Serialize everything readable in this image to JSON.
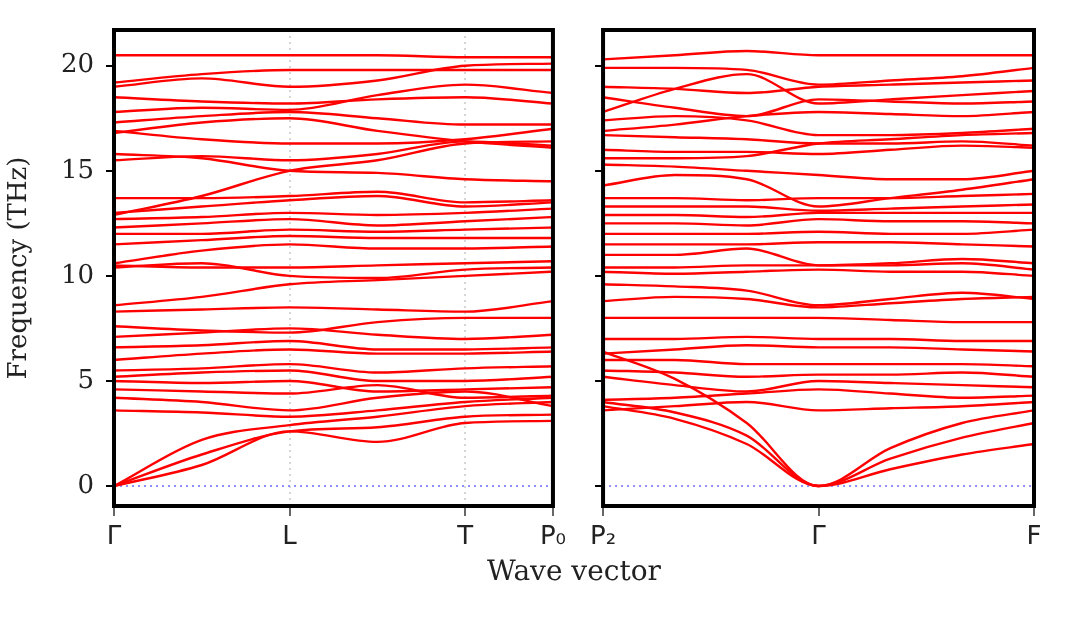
{
  "chart_data": [
    {
      "type": "line",
      "xlabel": "Wave vector",
      "ylabel": "Frequency (THz)",
      "categories": [
        "Γ",
        null,
        "L",
        null,
        "T",
        "P₀"
      ],
      "ylim": [
        -0.95,
        21.7
      ],
      "yticks": [
        0,
        5,
        10,
        15,
        20
      ],
      "grid": "x",
      "marker": "none",
      "ref_lines": [
        {
          "axis": "y",
          "value": 0,
          "color": "#6a6aff",
          "line_style": "dotted"
        }
      ],
      "series": [
        {
          "color": "#ff0000",
          "values": [
            0,
            1.0,
            2.6,
            2.1,
            3.0,
            3.1
          ]
        },
        {
          "color": "#ff0000",
          "values": [
            0,
            1.5,
            2.6,
            2.8,
            3.3,
            3.4
          ]
        },
        {
          "color": "#ff0000",
          "values": [
            0,
            2.2,
            2.9,
            3.3,
            3.8,
            4.0
          ]
        },
        {
          "color": "#ff0000",
          "values": [
            3.6,
            3.5,
            3.3,
            3.6,
            4.0,
            4.2
          ]
        },
        {
          "color": "#ff0000",
          "values": [
            4.2,
            4.0,
            3.6,
            4.2,
            4.5,
            3.8
          ]
        },
        {
          "color": "#ff0000",
          "values": [
            4.6,
            4.5,
            4.4,
            4.8,
            4.2,
            4.3
          ]
        },
        {
          "color": "#ff0000",
          "values": [
            5.0,
            4.9,
            5.0,
            4.5,
            4.6,
            4.7
          ]
        },
        {
          "color": "#ff0000",
          "values": [
            5.2,
            5.4,
            5.5,
            5.0,
            5.0,
            5.2
          ]
        },
        {
          "color": "#ff0000",
          "values": [
            5.5,
            5.6,
            5.8,
            5.4,
            5.6,
            5.7
          ]
        },
        {
          "color": "#ff0000",
          "values": [
            6.0,
            6.3,
            6.5,
            6.3,
            6.3,
            6.4
          ]
        },
        {
          "color": "#ff0000",
          "values": [
            6.6,
            6.7,
            6.9,
            6.5,
            6.5,
            6.6
          ]
        },
        {
          "color": "#ff0000",
          "values": [
            7.1,
            7.3,
            7.5,
            7.2,
            7.0,
            7.2
          ]
        },
        {
          "color": "#ff0000",
          "values": [
            7.6,
            7.4,
            7.3,
            7.8,
            8.0,
            8.0
          ]
        },
        {
          "color": "#ff0000",
          "values": [
            8.3,
            8.4,
            8.5,
            8.4,
            8.3,
            8.8
          ]
        },
        {
          "color": "#ff0000",
          "values": [
            8.6,
            9.0,
            9.6,
            9.8,
            10.0,
            10.2
          ]
        },
        {
          "color": "#ff0000",
          "values": [
            10.4,
            10.6,
            10.0,
            9.9,
            10.3,
            10.4
          ]
        },
        {
          "color": "#ff0000",
          "values": [
            10.5,
            10.4,
            10.4,
            10.5,
            10.6,
            10.7
          ]
        },
        {
          "color": "#ff0000",
          "values": [
            10.6,
            11.2,
            11.5,
            11.3,
            11.3,
            11.4
          ]
        },
        {
          "color": "#ff0000",
          "values": [
            11.5,
            11.7,
            11.9,
            11.8,
            11.8,
            11.8
          ]
        },
        {
          "color": "#ff0000",
          "values": [
            12.0,
            12.0,
            12.2,
            12.1,
            12.2,
            12.3
          ]
        },
        {
          "color": "#ff0000",
          "values": [
            12.3,
            12.5,
            12.7,
            12.4,
            12.6,
            12.8
          ]
        },
        {
          "color": "#ff0000",
          "values": [
            12.7,
            12.8,
            13.0,
            12.9,
            13.0,
            13.2
          ]
        },
        {
          "color": "#ff0000",
          "values": [
            13.0,
            13.3,
            13.6,
            13.8,
            13.3,
            13.5
          ]
        },
        {
          "color": "#ff0000",
          "values": [
            13.7,
            13.7,
            13.8,
            14.0,
            13.5,
            13.6
          ]
        },
        {
          "color": "#ff0000",
          "values": [
            12.9,
            13.8,
            15.0,
            15.5,
            16.3,
            16.4
          ]
        },
        {
          "color": "#ff0000",
          "values": [
            15.8,
            15.6,
            15.0,
            14.9,
            14.6,
            14.5
          ]
        },
        {
          "color": "#ff0000",
          "values": [
            15.5,
            15.7,
            15.5,
            15.8,
            16.4,
            16.2
          ]
        },
        {
          "color": "#ff0000",
          "values": [
            16.9,
            16.5,
            16.3,
            16.3,
            16.5,
            17.0
          ]
        },
        {
          "color": "#ff0000",
          "values": [
            16.8,
            17.3,
            17.5,
            16.9,
            16.4,
            16.1
          ]
        },
        {
          "color": "#ff0000",
          "values": [
            17.3,
            17.6,
            17.8,
            17.5,
            17.2,
            17.2
          ]
        },
        {
          "color": "#ff0000",
          "values": [
            17.8,
            18.0,
            17.9,
            18.6,
            19.1,
            18.7
          ]
        },
        {
          "color": "#ff0000",
          "values": [
            18.5,
            18.3,
            18.2,
            18.4,
            18.5,
            18.2
          ]
        },
        {
          "color": "#ff0000",
          "values": [
            19.0,
            19.4,
            19.0,
            19.3,
            20.0,
            20.1
          ]
        },
        {
          "color": "#ff0000",
          "values": [
            19.2,
            19.6,
            19.8,
            19.8,
            19.8,
            19.8
          ]
        },
        {
          "color": "#ff0000",
          "values": [
            20.5,
            20.5,
            20.5,
            20.5,
            20.4,
            20.4
          ]
        }
      ]
    },
    {
      "type": "line",
      "categories": [
        "P₂",
        null,
        null,
        "Γ",
        null,
        null,
        "F"
      ],
      "ylim": [
        -0.95,
        21.7
      ],
      "yticks": [
        0,
        5,
        10,
        15,
        20
      ],
      "tick_labels": "x",
      "marker": "none",
      "ref_lines": [
        {
          "axis": "y",
          "value": 0,
          "color": "#6a6aff",
          "line_style": "dotted"
        }
      ],
      "series": [
        {
          "color": "#ff0000",
          "values": [
            3.8,
            3.2,
            2.0,
            0,
            0.8,
            1.5,
            2.0
          ]
        },
        {
          "color": "#ff0000",
          "values": [
            4.0,
            3.5,
            2.4,
            0,
            1.3,
            2.3,
            3.0
          ]
        },
        {
          "color": "#ff0000",
          "values": [
            6.4,
            5.1,
            3.0,
            0,
            1.8,
            3.0,
            3.6
          ]
        },
        {
          "color": "#ff0000",
          "values": [
            3.6,
            3.8,
            4.0,
            3.6,
            3.7,
            3.8,
            4.0
          ]
        },
        {
          "color": "#ff0000",
          "values": [
            4.1,
            4.2,
            4.4,
            4.6,
            4.4,
            4.2,
            4.3
          ]
        },
        {
          "color": "#ff0000",
          "values": [
            5.2,
            4.8,
            4.5,
            5.0,
            4.9,
            4.8,
            4.7
          ]
        },
        {
          "color": "#ff0000",
          "values": [
            5.5,
            5.4,
            5.2,
            5.3,
            5.3,
            5.4,
            5.2
          ]
        },
        {
          "color": "#ff0000",
          "values": [
            6.0,
            6.0,
            5.8,
            5.8,
            5.8,
            5.8,
            5.7
          ]
        },
        {
          "color": "#ff0000",
          "values": [
            6.3,
            6.5,
            6.7,
            6.6,
            6.6,
            6.5,
            6.4
          ]
        },
        {
          "color": "#ff0000",
          "values": [
            7.0,
            7.0,
            7.1,
            7.0,
            7.0,
            6.9,
            6.9
          ]
        },
        {
          "color": "#ff0000",
          "values": [
            8.0,
            8.0,
            8.0,
            8.0,
            7.9,
            7.8,
            7.8
          ]
        },
        {
          "color": "#ff0000",
          "values": [
            8.8,
            9.0,
            8.9,
            8.5,
            8.7,
            8.9,
            9.0
          ]
        },
        {
          "color": "#ff0000",
          "values": [
            9.6,
            9.5,
            9.3,
            8.6,
            8.9,
            9.2,
            8.9
          ]
        },
        {
          "color": "#ff0000",
          "values": [
            10.2,
            10.1,
            10.2,
            10.3,
            10.2,
            10.2,
            10.0
          ]
        },
        {
          "color": "#ff0000",
          "values": [
            10.4,
            10.4,
            10.5,
            10.5,
            10.5,
            10.6,
            10.3
          ]
        },
        {
          "color": "#ff0000",
          "values": [
            11.0,
            11.0,
            11.3,
            10.5,
            10.6,
            10.8,
            10.6
          ]
        },
        {
          "color": "#ff0000",
          "values": [
            11.5,
            11.5,
            11.5,
            11.6,
            11.6,
            11.5,
            11.4
          ]
        },
        {
          "color": "#ff0000",
          "values": [
            12.0,
            12.0,
            12.0,
            12.1,
            12.0,
            12.0,
            12.2
          ]
        },
        {
          "color": "#ff0000",
          "values": [
            12.5,
            12.5,
            12.4,
            12.7,
            12.6,
            12.6,
            12.5
          ]
        },
        {
          "color": "#ff0000",
          "values": [
            12.9,
            12.9,
            12.8,
            13.0,
            13.0,
            13.0,
            13.0
          ]
        },
        {
          "color": "#ff0000",
          "values": [
            13.3,
            13.3,
            13.3,
            13.1,
            13.2,
            13.3,
            13.4
          ]
        },
        {
          "color": "#ff0000",
          "values": [
            13.7,
            13.7,
            13.6,
            13.7,
            13.7,
            13.8,
            13.9
          ]
        },
        {
          "color": "#ff0000",
          "values": [
            14.3,
            14.8,
            14.6,
            13.3,
            13.7,
            14.1,
            14.6
          ]
        },
        {
          "color": "#ff0000",
          "values": [
            15.3,
            15.2,
            15.0,
            14.8,
            14.6,
            14.6,
            15.0
          ]
        },
        {
          "color": "#ff0000",
          "values": [
            15.6,
            15.6,
            15.7,
            16.3,
            16.5,
            16.7,
            16.8
          ]
        },
        {
          "color": "#ff0000",
          "values": [
            16.0,
            15.9,
            15.9,
            15.8,
            16.0,
            16.2,
            16.1
          ]
        },
        {
          "color": "#ff0000",
          "values": [
            16.7,
            16.6,
            16.5,
            16.3,
            16.3,
            16.4,
            16.2
          ]
        },
        {
          "color": "#ff0000",
          "values": [
            16.9,
            17.2,
            17.6,
            17.8,
            17.7,
            17.6,
            17.8
          ]
        },
        {
          "color": "#ff0000",
          "values": [
            17.4,
            17.6,
            17.4,
            16.7,
            16.7,
            16.8,
            17.0
          ]
        },
        {
          "color": "#ff0000",
          "values": [
            18.5,
            18.0,
            17.6,
            18.4,
            18.3,
            18.2,
            18.3
          ]
        },
        {
          "color": "#ff0000",
          "values": [
            17.8,
            18.9,
            19.6,
            18.2,
            18.4,
            18.6,
            18.8
          ]
        },
        {
          "color": "#ff0000",
          "values": [
            19.0,
            18.9,
            18.7,
            19.0,
            19.1,
            19.2,
            19.3
          ]
        },
        {
          "color": "#ff0000",
          "values": [
            19.9,
            19.9,
            19.8,
            19.1,
            19.3,
            19.5,
            19.9
          ]
        },
        {
          "color": "#ff0000",
          "values": [
            20.3,
            20.5,
            20.7,
            20.5,
            20.5,
            20.5,
            20.5
          ]
        }
      ]
    }
  ]
}
